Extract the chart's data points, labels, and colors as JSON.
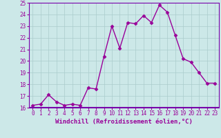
{
  "x": [
    0,
    1,
    2,
    3,
    4,
    5,
    6,
    7,
    8,
    9,
    10,
    11,
    12,
    13,
    14,
    15,
    16,
    17,
    18,
    19,
    20,
    21,
    22,
    23
  ],
  "y": [
    16.2,
    16.3,
    17.1,
    16.5,
    16.2,
    16.3,
    16.2,
    17.7,
    17.6,
    20.4,
    23.0,
    21.1,
    23.3,
    23.2,
    23.9,
    23.3,
    24.8,
    24.2,
    22.2,
    20.2,
    19.9,
    19.0,
    18.1,
    18.1
  ],
  "line_color": "#990099",
  "marker": "D",
  "marker_size": 2.5,
  "background_color": "#cce8e8",
  "grid_color": "#aacccc",
  "xlabel": "Windchill (Refroidissement éolien,°C)",
  "ylim": [
    16,
    25
  ],
  "xlim_min": -0.5,
  "xlim_max": 23.5,
  "yticks": [
    16,
    17,
    18,
    19,
    20,
    21,
    22,
    23,
    24,
    25
  ],
  "xticks": [
    0,
    1,
    2,
    3,
    4,
    5,
    6,
    7,
    8,
    9,
    10,
    11,
    12,
    13,
    14,
    15,
    16,
    17,
    18,
    19,
    20,
    21,
    22,
    23
  ],
  "tick_fontsize": 5.5,
  "xlabel_fontsize": 6.5,
  "line_width": 1.0,
  "spine_color": "#9900aa",
  "border_color": "#7700aa"
}
